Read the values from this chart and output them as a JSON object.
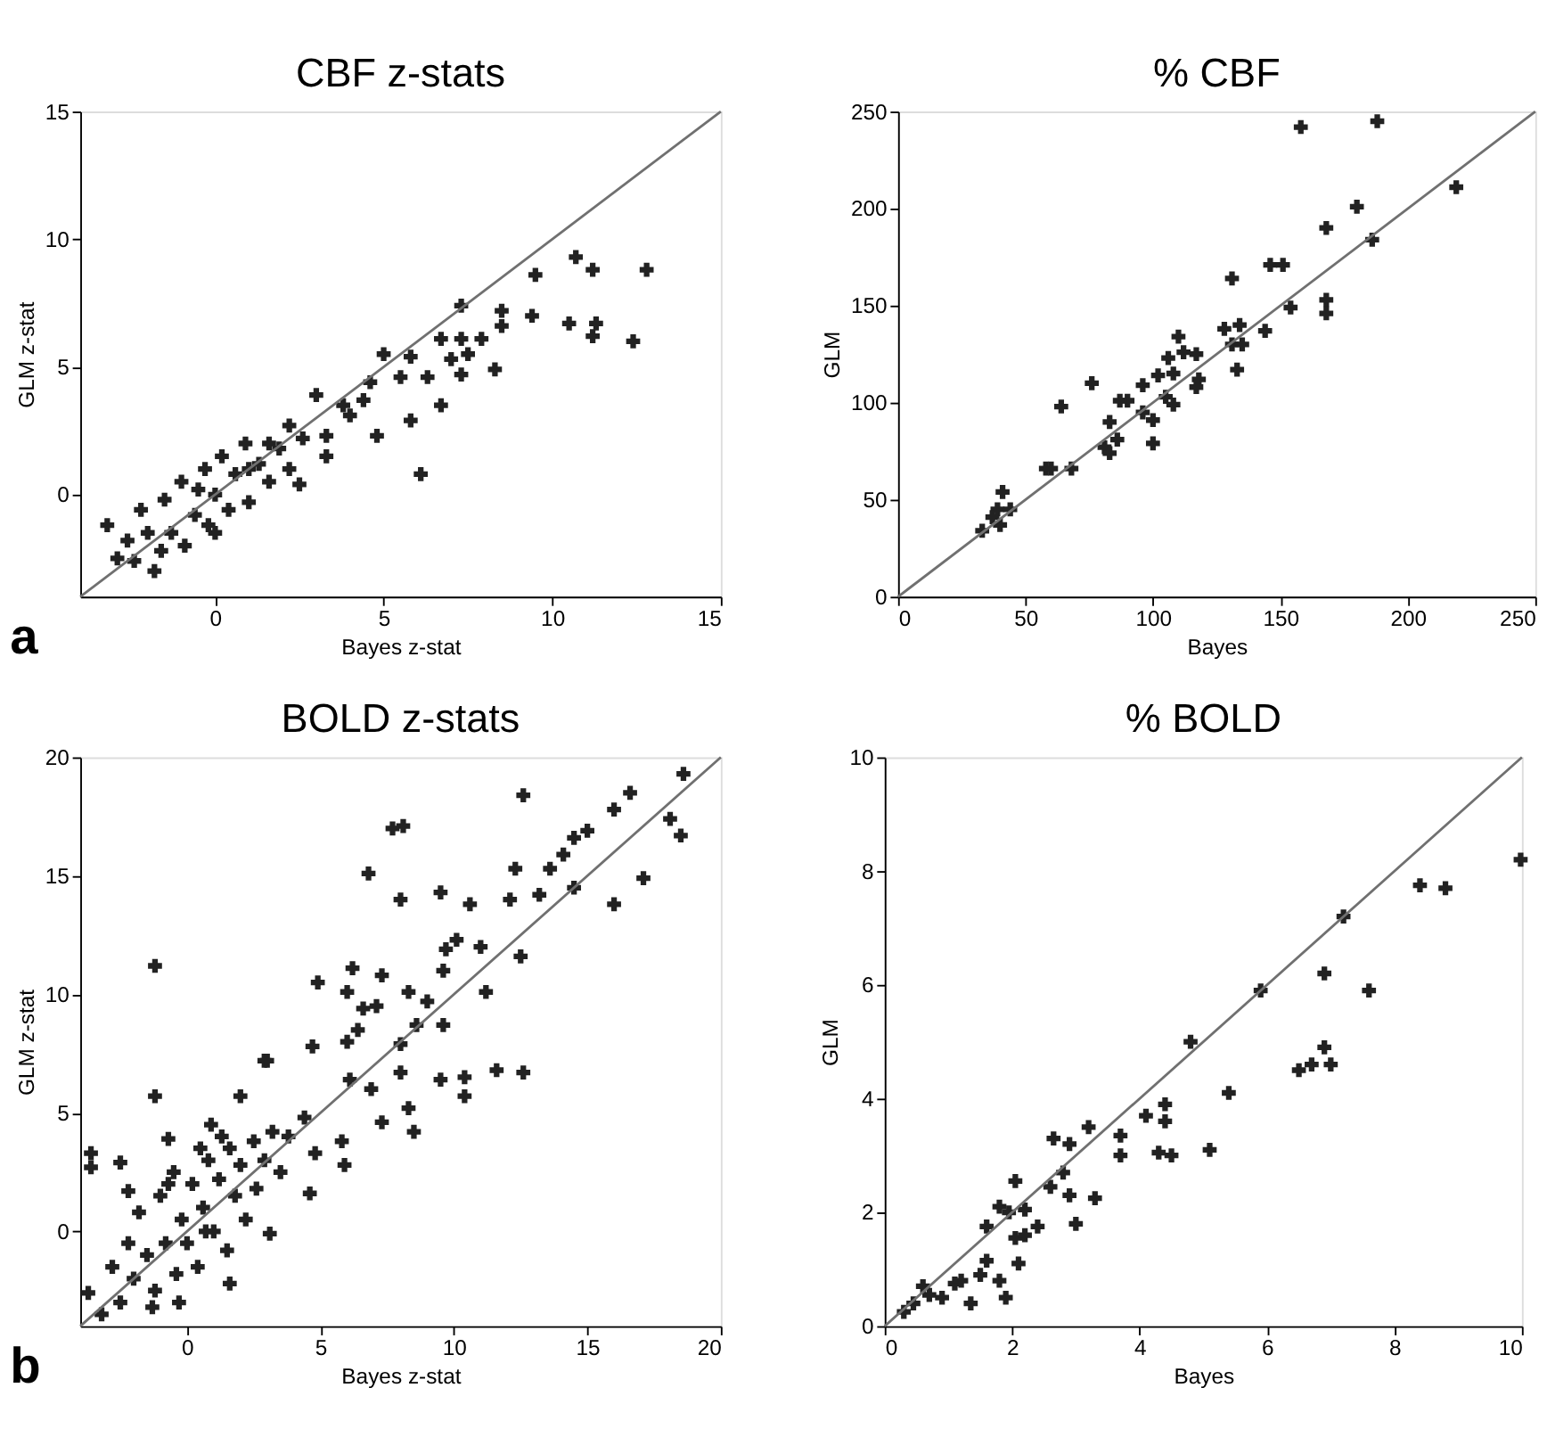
{
  "chart_data": [
    {
      "type": "scatter",
      "title": "CBF z-stats",
      "xlabel": "Bayes z-stat",
      "ylabel": "GLM z-stat",
      "xlim": [
        -4,
        15
      ],
      "ylim": [
        -4,
        15
      ],
      "xticks": [
        0,
        5,
        10,
        15
      ],
      "yticks": [
        0,
        5,
        10,
        15
      ],
      "grid": false,
      "marker": "cross",
      "annotations": [
        "a"
      ],
      "series": [
        {
          "color": "#222222",
          "x": [
            10.7,
            11.2,
            9.5,
            12.8,
            7.3,
            8.5,
            9.4,
            10.5,
            11.3,
            11.2,
            12.4,
            8.5,
            8.3,
            6.1,
            7.3,
            6.7,
            7.9,
            7.5,
            7.0,
            6.3,
            7.3,
            6.7,
            5.8,
            5.8,
            5.0,
            5.5,
            4.6,
            4.4,
            4.8,
            4.0,
            3.0,
            3.8,
            3.3,
            2.5,
            2.2,
            1.6,
            -3.2,
            -2.9,
            -2.6,
            -2.2,
            -2.0,
            -1.8,
            -1.5,
            -1.3,
            -1.0,
            -0.9,
            -0.6,
            -0.3,
            -0.2,
            0.0,
            0.2,
            0.4,
            0.6,
            0.9,
            1.0,
            1.3,
            1.6,
            1.9,
            2.2,
            0.0,
            -1.6,
            2.6,
            3.3,
            1.0,
            -0.5,
            -2.4
          ],
          "values": [
            9.3,
            8.8,
            8.6,
            8.8,
            7.4,
            7.2,
            7.0,
            6.7,
            6.7,
            6.2,
            6.0,
            6.6,
            4.9,
            0.8,
            6.1,
            6.1,
            6.1,
            5.5,
            5.3,
            4.6,
            4.7,
            3.5,
            2.9,
            5.4,
            5.5,
            4.6,
            4.4,
            3.7,
            2.3,
            3.1,
            3.9,
            3.5,
            2.3,
            0.4,
            2.7,
            2.0,
            -1.2,
            -2.5,
            -1.8,
            -0.6,
            -1.5,
            -3.0,
            -0.2,
            -1.5,
            0.5,
            -2.0,
            -0.8,
            1.0,
            -1.2,
            0.0,
            1.5,
            -0.6,
            0.8,
            2.0,
            -0.3,
            1.2,
            0.5,
            1.8,
            1.0,
            -1.5,
            -2.2,
            2.2,
            1.5,
            1.0,
            0.2,
            -2.6
          ]
        },
        {
          "type": "line",
          "color": "#707070",
          "marker": "none",
          "x": [
            -4,
            15
          ],
          "values": [
            -4,
            15
          ]
        }
      ]
    },
    {
      "type": "scatter",
      "title": "% CBF",
      "xlabel": "Bayes",
      "ylabel": "GLM",
      "xlim": [
        0,
        250
      ],
      "ylim": [
        0,
        250
      ],
      "xticks": [
        0,
        50,
        100,
        150,
        200,
        250
      ],
      "yticks": [
        0,
        50,
        100,
        150,
        200,
        250
      ],
      "grid": false,
      "marker": "cross",
      "series": [
        {
          "color": "#222222",
          "x": [
            158,
            188,
            219,
            180,
            168,
            186,
            131,
            146,
            151,
            154,
            168,
            168,
            144,
            128,
            131,
            135,
            134,
            133,
            110,
            112,
            117,
            118,
            117,
            106,
            108,
            102,
            105,
            108,
            100,
            100,
            96,
            96,
            90,
            87,
            76,
            64,
            68,
            58,
            60,
            83,
            86,
            81,
            83,
            41,
            39,
            44,
            40,
            33,
            37
          ],
          "values": [
            242,
            245,
            211,
            201,
            190,
            184,
            164,
            171,
            171,
            149,
            153,
            146,
            137,
            138,
            130,
            130,
            140,
            117,
            134,
            126,
            125,
            112,
            108,
            123,
            115,
            114,
            103,
            99,
            91,
            79,
            109,
            95,
            101,
            101,
            110,
            98,
            66,
            66,
            66,
            90,
            81,
            77,
            74,
            54,
            45,
            45,
            37,
            34,
            41
          ]
        },
        {
          "type": "line",
          "color": "#707070",
          "marker": "none",
          "x": [
            0,
            250
          ],
          "values": [
            0,
            250
          ]
        }
      ]
    },
    {
      "type": "scatter",
      "title": "BOLD z-stats",
      "xlabel": "Bayes z-stat",
      "ylabel": "GLM z-stat",
      "xlim": [
        -4,
        20
      ],
      "ylim": [
        -4,
        20
      ],
      "xticks": [
        0,
        5,
        10,
        15,
        20
      ],
      "yticks": [
        0,
        5,
        10,
        15,
        20
      ],
      "grid": false,
      "marker": "cross",
      "annotations": [
        "b"
      ],
      "series": [
        {
          "color": "#222222",
          "x": [
            18.6,
            16.6,
            12.6,
            8.1,
            7.7,
            6.8,
            18.1,
            18.5,
            16.0,
            15.0,
            14.5,
            16.0,
            17.1,
            14.1,
            12.3,
            12.1,
            13.6,
            14.5,
            13.2,
            9.5,
            8.0,
            10.6,
            12.5,
            11.0,
            9.7,
            10.1,
            11.2,
            9.6,
            9.0,
            8.3,
            7.3,
            6.2,
            4.9,
            6.0,
            6.6,
            7.1,
            8.6,
            9.6,
            8.0,
            6.0,
            4.7,
            2.9,
            6.4,
            8.0,
            9.5,
            10.4,
            10.4,
            11.6,
            12.6,
            6.9,
            7.3,
            8.3,
            8.5,
            6.1,
            5.8,
            5.9,
            4.6,
            -1.2,
            -1.2,
            -3.6,
            -3.6,
            -2.5,
            -2.2,
            -0.7,
            0.9,
            2.0,
            3.0,
            3.1,
            1.6,
            -3.7,
            4.4,
            4.8,
            -3.2,
            -2.8,
            -2.5,
            -2.2,
            -2.0,
            -1.8,
            -1.5,
            -1.3,
            -1.0,
            -0.8,
            -0.5,
            -0.4,
            -0.2,
            0.0,
            0.2,
            0.4,
            0.6,
            0.8,
            1.0,
            1.2,
            1.5,
            1.6,
            1.8,
            2.0,
            2.2,
            2.5,
            2.6,
            2.9,
            3.2,
            1.3,
            0.5,
            -1.2,
            -0.3,
            0.7,
            -0.7,
            3.5,
            3.8
          ],
          "values": [
            19.3,
            18.5,
            18.4,
            17.1,
            17.0,
            15.1,
            17.4,
            16.7,
            17.8,
            16.9,
            16.6,
            13.8,
            14.9,
            15.9,
            15.3,
            14.0,
            15.3,
            14.5,
            14.2,
            14.3,
            14.0,
            13.8,
            11.6,
            12.0,
            11.9,
            12.3,
            10.1,
            11.0,
            9.7,
            10.1,
            10.8,
            11.1,
            10.5,
            10.1,
            9.4,
            9.5,
            8.7,
            8.7,
            7.9,
            8.0,
            7.8,
            7.2,
            8.5,
            6.7,
            6.4,
            6.5,
            5.7,
            6.8,
            6.7,
            6.0,
            4.6,
            5.2,
            4.2,
            6.4,
            3.8,
            2.8,
            1.6,
            11.2,
            5.7,
            3.3,
            2.7,
            2.9,
            1.7,
            3.9,
            4.5,
            5.7,
            7.2,
            -0.1,
            -2.2,
            -2.6,
            4.8,
            3.3,
            -3.5,
            -1.5,
            -3.0,
            -0.5,
            -2.0,
            0.8,
            -1.0,
            -3.2,
            1.5,
            -0.5,
            2.5,
            -1.8,
            0.5,
            -0.5,
            2.0,
            -1.5,
            1.0,
            3.0,
            0.0,
            2.2,
            -0.8,
            3.5,
            1.5,
            2.8,
            0.5,
            3.8,
            1.8,
            3.0,
            4.2,
            4.0,
            3.5,
            -2.5,
            -3.0,
            0.0,
            2.0,
            2.5,
            4.0
          ]
        },
        {
          "type": "line",
          "color": "#707070",
          "marker": "none",
          "x": [
            -4,
            20
          ],
          "values": [
            -4,
            20
          ]
        }
      ]
    },
    {
      "type": "scatter",
      "title": "% BOLD",
      "xlabel": "Bayes",
      "ylabel": "GLM",
      "xlim": [
        0,
        10
      ],
      "ylim": [
        0,
        10
      ],
      "xticks": [
        0,
        2,
        4,
        6,
        8,
        10
      ],
      "yticks": [
        0,
        2,
        4,
        6,
        8,
        10
      ],
      "grid": false,
      "marker": "cross",
      "series": [
        {
          "color": "#222222",
          "x": [
            9.98,
            8.4,
            8.8,
            7.2,
            6.9,
            7.6,
            5.9,
            4.8,
            6.9,
            6.7,
            6.5,
            7.0,
            5.4,
            4.1,
            4.4,
            4.4,
            4.3,
            4.5,
            5.1,
            3.7,
            3.7,
            3.2,
            2.65,
            2.9,
            3.3,
            3.0,
            2.8,
            2.9,
            2.6,
            2.05,
            1.95,
            2.2,
            2.4,
            1.6,
            2.05,
            2.1,
            1.6,
            1.5,
            1.8,
            1.9,
            1.35,
            1.1,
            0.7,
            0.45,
            0.3,
            0.6,
            0.9,
            1.2,
            2.2,
            1.8
          ],
          "values": [
            8.2,
            7.75,
            7.7,
            7.2,
            6.2,
            5.9,
            5.9,
            5.0,
            4.9,
            4.6,
            4.5,
            4.6,
            4.1,
            3.7,
            3.9,
            3.6,
            3.05,
            3.0,
            3.1,
            3.35,
            3.0,
            3.5,
            3.3,
            3.2,
            2.25,
            1.8,
            2.7,
            2.3,
            2.45,
            2.55,
            2.0,
            2.05,
            1.75,
            1.75,
            1.55,
            1.1,
            1.15,
            0.9,
            0.8,
            0.5,
            0.4,
            0.75,
            0.55,
            0.4,
            0.25,
            0.7,
            0.5,
            0.8,
            1.6,
            2.1
          ]
        },
        {
          "type": "line",
          "color": "#707070",
          "marker": "none",
          "x": [
            0,
            10
          ],
          "values": [
            0,
            10
          ]
        }
      ]
    }
  ]
}
